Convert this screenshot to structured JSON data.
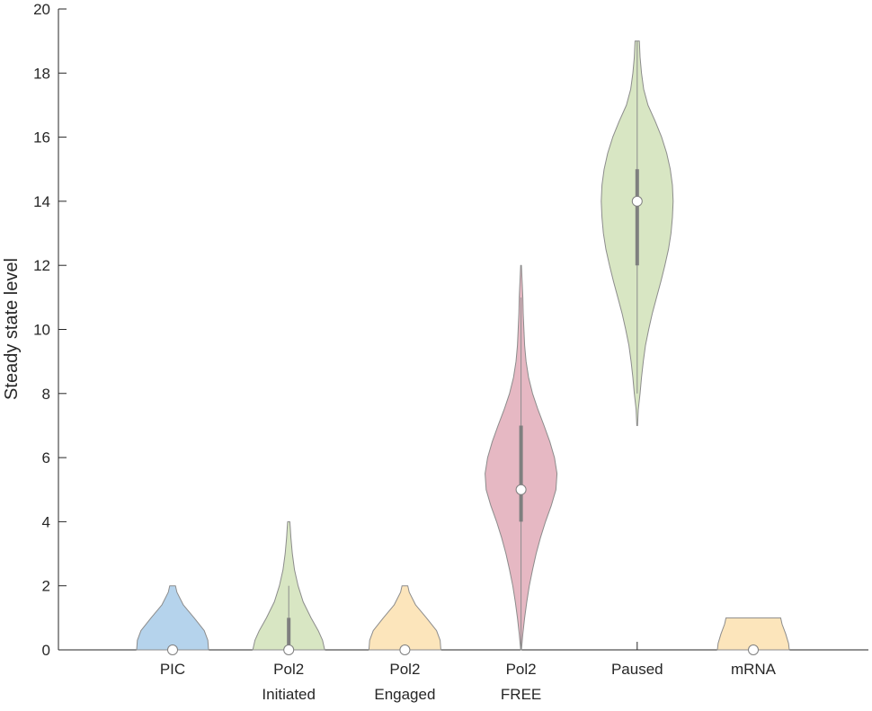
{
  "chart_data": {
    "type": "violin",
    "ylabel": "Steady state level",
    "ylim": [
      0,
      20
    ],
    "yticks": [
      "0",
      "2",
      "4",
      "6",
      "8",
      "10",
      "12",
      "14",
      "16",
      "18",
      "20"
    ],
    "categories": [
      {
        "lines": [
          "PIC"
        ]
      },
      {
        "lines": [
          "Pol2",
          "Initiated"
        ]
      },
      {
        "lines": [
          "Pol2",
          "Engaged"
        ]
      },
      {
        "lines": [
          "Pol2",
          "FREE"
        ]
      },
      {
        "lines": [
          "Paused"
        ]
      },
      {
        "lines": [
          "mRNA"
        ]
      }
    ],
    "violins": [
      {
        "color": "#b5d3ec",
        "median": 0,
        "q1": 0,
        "q3": 0,
        "whisker_low": 0,
        "whisker_high": 0,
        "profile": [
          [
            0,
            1.0
          ],
          [
            0.3,
            0.98
          ],
          [
            0.6,
            0.88
          ],
          [
            1.0,
            0.6
          ],
          [
            1.4,
            0.3
          ],
          [
            1.8,
            0.12
          ],
          [
            2.0,
            0.08
          ]
        ]
      },
      {
        "color": "#d8e6c3",
        "median": 0,
        "q1": 0,
        "q3": 1,
        "whisker_low": 0,
        "whisker_high": 2,
        "profile": [
          [
            0,
            1.0
          ],
          [
            0.3,
            0.94
          ],
          [
            0.6,
            0.82
          ],
          [
            1.0,
            0.62
          ],
          [
            1.5,
            0.4
          ],
          [
            2.0,
            0.26
          ],
          [
            2.5,
            0.16
          ],
          [
            3.0,
            0.1
          ],
          [
            3.5,
            0.06
          ],
          [
            3.85,
            0.04
          ],
          [
            4.0,
            0.03
          ]
        ]
      },
      {
        "color": "#fce5bb",
        "median": 0,
        "q1": 0,
        "q3": 0,
        "whisker_low": 0,
        "whisker_high": 0,
        "profile": [
          [
            0,
            1.0
          ],
          [
            0.3,
            0.98
          ],
          [
            0.6,
            0.88
          ],
          [
            1.0,
            0.6
          ],
          [
            1.4,
            0.3
          ],
          [
            1.8,
            0.12
          ],
          [
            2.0,
            0.08
          ]
        ]
      },
      {
        "color": "#e6b8c3",
        "median": 5,
        "q1": 4,
        "q3": 7,
        "whisker_low": 0,
        "whisker_high": 11,
        "profile": [
          [
            0,
            0.01
          ],
          [
            0.5,
            0.05
          ],
          [
            1.0,
            0.1
          ],
          [
            1.5,
            0.16
          ],
          [
            2.0,
            0.23
          ],
          [
            2.5,
            0.32
          ],
          [
            3.0,
            0.42
          ],
          [
            3.5,
            0.54
          ],
          [
            4.0,
            0.68
          ],
          [
            4.5,
            0.84
          ],
          [
            5.0,
            0.97
          ],
          [
            5.5,
            1.0
          ],
          [
            6.0,
            0.93
          ],
          [
            6.5,
            0.8
          ],
          [
            7.0,
            0.64
          ],
          [
            7.5,
            0.47
          ],
          [
            8.0,
            0.32
          ],
          [
            8.5,
            0.21
          ],
          [
            9.0,
            0.14
          ],
          [
            9.5,
            0.1
          ],
          [
            10.0,
            0.08
          ],
          [
            10.5,
            0.06
          ],
          [
            11.0,
            0.05
          ],
          [
            11.5,
            0.03
          ],
          [
            12.0,
            0.01
          ]
        ]
      },
      {
        "color": "#d8e6c3",
        "median": 14,
        "q1": 12,
        "q3": 15,
        "whisker_low": 8,
        "whisker_high": 19,
        "profile": [
          [
            7.0,
            0.01
          ],
          [
            7.5,
            0.03
          ],
          [
            8.0,
            0.08
          ],
          [
            8.5,
            0.12
          ],
          [
            9.0,
            0.17
          ],
          [
            9.5,
            0.23
          ],
          [
            10.0,
            0.32
          ],
          [
            10.5,
            0.42
          ],
          [
            11.0,
            0.54
          ],
          [
            11.5,
            0.66
          ],
          [
            12.0,
            0.77
          ],
          [
            12.5,
            0.87
          ],
          [
            13.0,
            0.94
          ],
          [
            13.5,
            0.98
          ],
          [
            14.0,
            1.0
          ],
          [
            14.5,
            0.98
          ],
          [
            15.0,
            0.92
          ],
          [
            15.5,
            0.82
          ],
          [
            16.0,
            0.68
          ],
          [
            16.5,
            0.5
          ],
          [
            17.0,
            0.3
          ],
          [
            17.5,
            0.18
          ],
          [
            18.0,
            0.12
          ],
          [
            18.5,
            0.08
          ],
          [
            19.0,
            0.06
          ]
        ]
      },
      {
        "color": "#fce5bb",
        "median": 0,
        "q1": 0,
        "q3": 0,
        "whisker_low": 0,
        "whisker_high": 0,
        "profile": [
          [
            0,
            1.0
          ],
          [
            0.2,
            0.98
          ],
          [
            0.5,
            0.9
          ],
          [
            0.8,
            0.8
          ],
          [
            1.0,
            0.76
          ]
        ]
      }
    ]
  }
}
